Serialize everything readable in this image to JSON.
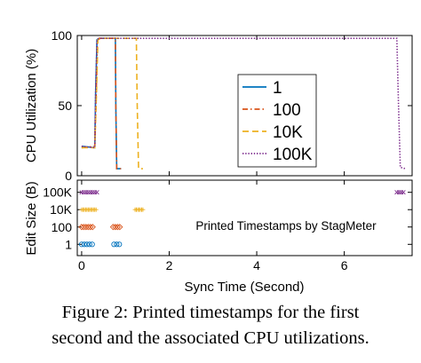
{
  "caption": {
    "line1": "Figure 2: Printed timestamps for the first",
    "line2": "second and the associated CPU utilizations."
  },
  "chart_data": [
    {
      "type": "line",
      "panel": "cpu-utilization",
      "ylabel": "CPU Utilization (%)",
      "ylim": [
        0,
        100
      ],
      "yticks": [
        "0",
        "50",
        "100"
      ],
      "xlim": [
        -0.1,
        7.55
      ],
      "xticks": [
        "0",
        "2",
        "4",
        "6"
      ],
      "legend": {
        "placement": "center-right"
      },
      "series": [
        {
          "name": "1",
          "color": "#0072BD",
          "dash": "solid",
          "x": [
            0,
            0.3,
            0.32,
            0.35,
            0.4,
            0.45,
            0.77,
            0.78,
            0.8,
            0.9
          ],
          "y": [
            21,
            20,
            60,
            97,
            98,
            98,
            98,
            50,
            5,
            5
          ]
        },
        {
          "name": "100",
          "color": "#D95319",
          "dash": "dashdot",
          "x": [
            0,
            0.3,
            0.33,
            0.36,
            0.4,
            0.45,
            0.77,
            0.78,
            0.8,
            0.9
          ],
          "y": [
            20,
            21,
            55,
            96,
            98,
            98,
            98,
            50,
            5,
            5
          ]
        },
        {
          "name": "10K",
          "color": "#EDB120",
          "dash": "dashed",
          "x": [
            0,
            0.3,
            0.34,
            0.37,
            0.45,
            1.25,
            1.27,
            1.3,
            1.4
          ],
          "y": [
            20,
            20,
            60,
            97,
            98,
            98,
            50,
            5,
            5
          ]
        },
        {
          "name": "100K",
          "color": "#7E2F8E",
          "dash": "dotted",
          "x": [
            0,
            0.3,
            0.32,
            0.35,
            0.4,
            7.2,
            7.24,
            7.28,
            7.4
          ],
          "y": [
            21,
            20,
            60,
            97,
            98,
            98,
            50,
            6,
            5
          ]
        }
      ]
    },
    {
      "type": "scatter",
      "panel": "edit-size",
      "title": "Printed Timestamps by StagMeter",
      "xlabel": "Sync Time (Second)",
      "ylabel": "Edit Size (B)",
      "categories": [
        "1",
        "100",
        "10K",
        "100K"
      ],
      "xlim": [
        -0.1,
        7.55
      ],
      "xticks": [
        "0",
        "2",
        "4",
        "6"
      ],
      "series": [
        {
          "name": "1",
          "color": "#0072BD",
          "marker": "circle",
          "x": [
            0.0,
            0.06,
            0.12,
            0.18,
            0.24,
            0.74,
            0.8,
            0.86
          ]
        },
        {
          "name": "100",
          "color": "#D95319",
          "marker": "diamond",
          "x": [
            0.0,
            0.05,
            0.1,
            0.15,
            0.2,
            0.25,
            0.72,
            0.77,
            0.82,
            0.87
          ]
        },
        {
          "name": "10K",
          "color": "#EDB120",
          "marker": "plus",
          "x": [
            0.0,
            0.03,
            0.06,
            0.09,
            0.12,
            0.15,
            0.18,
            0.21,
            0.24,
            0.27,
            0.3,
            0.33,
            1.22,
            1.25,
            1.28,
            1.31,
            1.34,
            1.37,
            1.4
          ]
        },
        {
          "name": "100K",
          "color": "#7E2F8E",
          "marker": "cross",
          "x": [
            0.0,
            0.05,
            0.1,
            0.15,
            0.2,
            0.25,
            0.3,
            0.35,
            7.2,
            7.25,
            7.3,
            7.35
          ]
        }
      ]
    }
  ]
}
